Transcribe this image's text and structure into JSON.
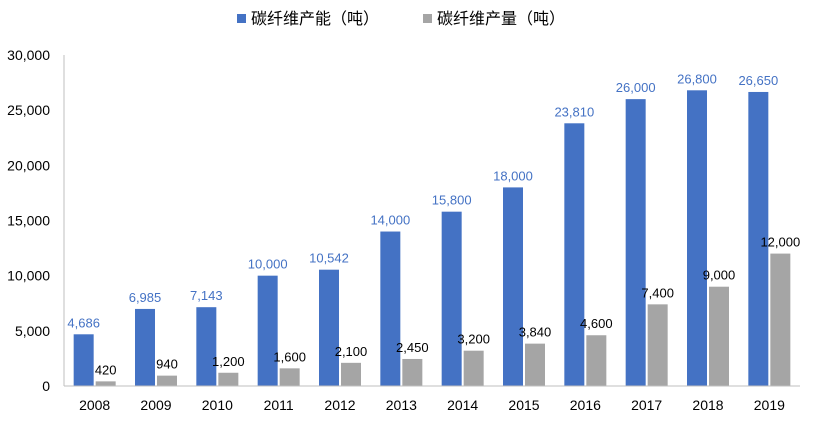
{
  "chart_data": {
    "type": "bar",
    "title": "",
    "xlabel": "",
    "ylabel": "",
    "ylim": [
      0,
      30000
    ],
    "yticks": [
      "0",
      "5,000",
      "10,000",
      "15,000",
      "20,000",
      "25,000",
      "30,000"
    ],
    "ytick_values": [
      0,
      5000,
      10000,
      15000,
      20000,
      25000,
      30000
    ],
    "grid": false,
    "legend_position": "top-center",
    "categories": [
      "2008",
      "2009",
      "2010",
      "2011",
      "2012",
      "2013",
      "2014",
      "2015",
      "2016",
      "2017",
      "2018",
      "2019"
    ],
    "series": [
      {
        "name": "碳纤维产能（吨）",
        "color": "#4472C4",
        "label_color": "#4472C4",
        "values": [
          4686,
          6985,
          7143,
          10000,
          10542,
          14000,
          15800,
          18000,
          23810,
          26000,
          26800,
          26650
        ],
        "labels": [
          "4,686",
          "6,985",
          "7,143",
          "10,000",
          "10,542",
          "14,000",
          "15,800",
          "18,000",
          "23,810",
          "26,000",
          "26,800",
          "26,650"
        ]
      },
      {
        "name": "碳纤维产量（吨）",
        "color": "#A5A5A5",
        "label_color": "#000000",
        "values": [
          420,
          940,
          1200,
          1600,
          2100,
          2450,
          3200,
          3840,
          4600,
          7400,
          9000,
          12000
        ],
        "labels": [
          "420",
          "940",
          "1,200",
          "1,600",
          "2,100",
          "2,450",
          "3,200",
          "3,840",
          "4,600",
          "7,400",
          "9,000",
          "12,000"
        ]
      }
    ]
  }
}
